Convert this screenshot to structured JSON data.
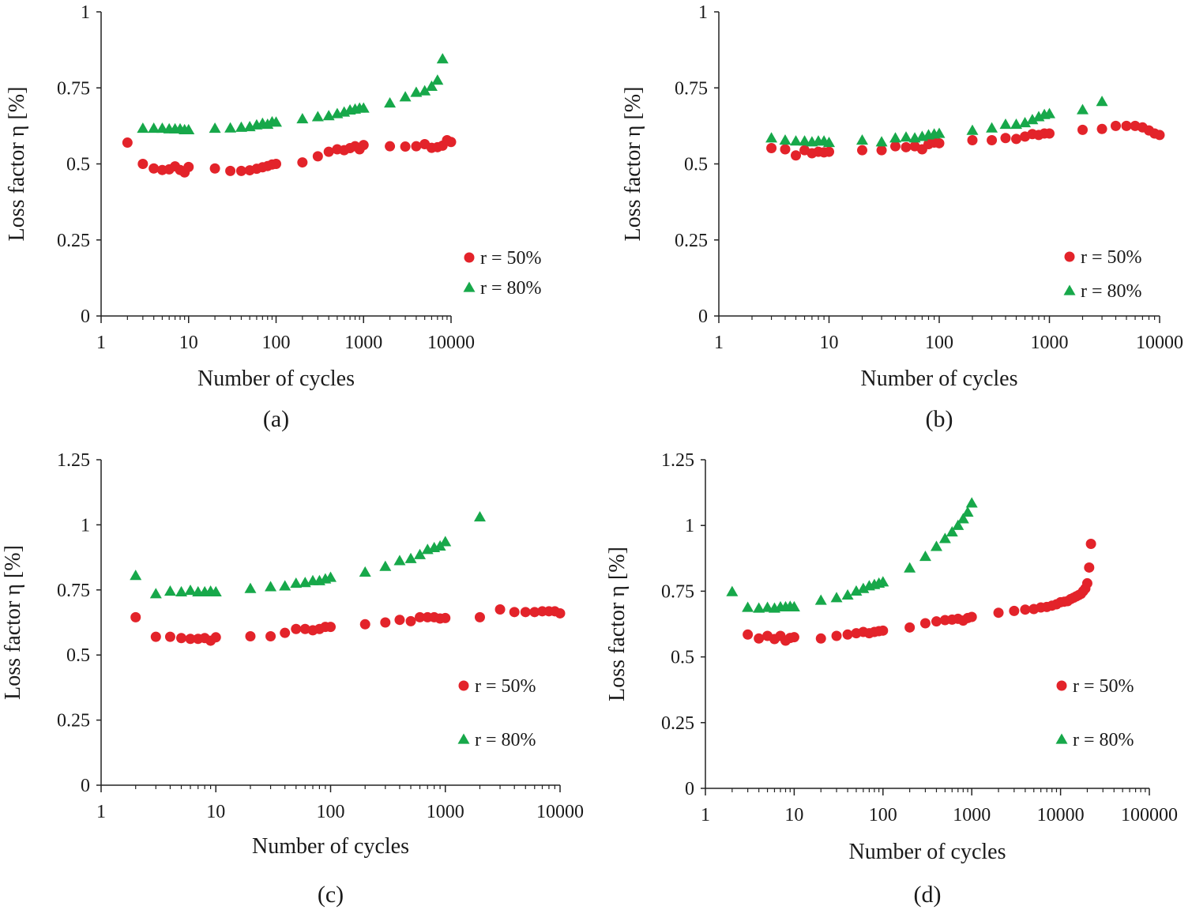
{
  "colors": {
    "series_50": "#e3232a",
    "series_80": "#17a84a",
    "axis": "#222222"
  },
  "chart_data": [
    {
      "type": "scatter",
      "panel": "(a)",
      "xscale": "log",
      "xlabel": "Number of cycles",
      "ylabel": "Loss factor η [%]",
      "xlim": [
        1,
        10000
      ],
      "ylim": [
        0,
        1
      ],
      "xticks": [
        1,
        10,
        100,
        1000,
        10000
      ],
      "xtick_labels": [
        "1",
        "10",
        "100",
        "1000",
        "10000"
      ],
      "yticks": [
        0,
        0.25,
        0.5,
        0.75,
        1
      ],
      "ytick_labels": [
        "0",
        "0.25",
        "0.5",
        "0.75",
        "1"
      ],
      "legend_position": "bottom-right",
      "series": [
        {
          "name": "r = 50%",
          "marker": "circle",
          "x": [
            2,
            3,
            4,
            5,
            6,
            7,
            8,
            9,
            10,
            20,
            30,
            40,
            50,
            60,
            70,
            80,
            90,
            100,
            200,
            300,
            400,
            500,
            600,
            700,
            800,
            900,
            1000,
            2000,
            3000,
            4000,
            5000,
            6000,
            7000,
            8000,
            9000,
            10000
          ],
          "y": [
            0.57,
            0.5,
            0.485,
            0.48,
            0.482,
            0.492,
            0.48,
            0.472,
            0.49,
            0.485,
            0.477,
            0.477,
            0.479,
            0.484,
            0.489,
            0.493,
            0.498,
            0.5,
            0.505,
            0.525,
            0.54,
            0.548,
            0.545,
            0.552,
            0.558,
            0.548,
            0.562,
            0.558,
            0.557,
            0.558,
            0.565,
            0.553,
            0.555,
            0.56,
            0.578,
            0.572
          ]
        },
        {
          "name": "r = 80%",
          "marker": "triangle",
          "x": [
            3,
            4,
            5,
            6,
            7,
            8,
            9,
            10,
            20,
            30,
            40,
            50,
            60,
            70,
            80,
            90,
            100,
            200,
            300,
            400,
            500,
            600,
            700,
            800,
            900,
            1000,
            2000,
            3000,
            4000,
            5000,
            6000,
            7000,
            8000
          ],
          "y": [
            0.617,
            0.617,
            0.617,
            0.615,
            0.615,
            0.615,
            0.612,
            0.612,
            0.617,
            0.618,
            0.62,
            0.622,
            0.628,
            0.633,
            0.63,
            0.638,
            0.637,
            0.648,
            0.655,
            0.658,
            0.665,
            0.67,
            0.677,
            0.68,
            0.683,
            0.683,
            0.7,
            0.72,
            0.735,
            0.74,
            0.755,
            0.775,
            0.845
          ]
        }
      ]
    },
    {
      "type": "scatter",
      "panel": "(b)",
      "xscale": "log",
      "xlabel": "Number of cycles",
      "ylabel": "Loss factor η [%]",
      "xlim": [
        1,
        10000
      ],
      "ylim": [
        0,
        1
      ],
      "xticks": [
        1,
        10,
        100,
        1000,
        10000
      ],
      "xtick_labels": [
        "1",
        "10",
        "100",
        "1000",
        "10000"
      ],
      "yticks": [
        0,
        0.25,
        0.5,
        0.75,
        1
      ],
      "ytick_labels": [
        "0",
        "0.25",
        "0.5",
        "0.75",
        "1"
      ],
      "legend_position": "bottom-right",
      "series": [
        {
          "name": "r = 50%",
          "marker": "circle",
          "x": [
            3,
            4,
            5,
            6,
            7,
            8,
            9,
            10,
            20,
            30,
            40,
            50,
            60,
            70,
            80,
            90,
            100,
            200,
            300,
            400,
            500,
            600,
            700,
            800,
            900,
            1000,
            2000,
            3000,
            4000,
            5000,
            6000,
            7000,
            8000,
            9000,
            10000
          ],
          "y": [
            0.552,
            0.548,
            0.528,
            0.545,
            0.535,
            0.54,
            0.538,
            0.54,
            0.545,
            0.545,
            0.558,
            0.555,
            0.558,
            0.548,
            0.565,
            0.57,
            0.568,
            0.578,
            0.578,
            0.585,
            0.582,
            0.59,
            0.598,
            0.595,
            0.6,
            0.6,
            0.612,
            0.615,
            0.625,
            0.625,
            0.625,
            0.62,
            0.61,
            0.6,
            0.595
          ]
        },
        {
          "name": "r = 80%",
          "marker": "triangle",
          "x": [
            3,
            4,
            5,
            6,
            7,
            8,
            9,
            10,
            20,
            30,
            40,
            50,
            60,
            70,
            80,
            90,
            100,
            200,
            300,
            400,
            500,
            600,
            700,
            800,
            900,
            1000,
            2000,
            3000
          ],
          "y": [
            0.585,
            0.578,
            0.575,
            0.575,
            0.572,
            0.575,
            0.575,
            0.57,
            0.578,
            0.572,
            0.585,
            0.588,
            0.585,
            0.59,
            0.595,
            0.598,
            0.6,
            0.61,
            0.618,
            0.63,
            0.63,
            0.635,
            0.645,
            0.655,
            0.662,
            0.665,
            0.678,
            0.705
          ]
        }
      ]
    },
    {
      "type": "scatter",
      "panel": "(c)",
      "xscale": "log",
      "xlabel": "Number of cycles",
      "ylabel": "Loss factor η [%]",
      "xlim": [
        1,
        10000
      ],
      "ylim": [
        0,
        1.25
      ],
      "xticks": [
        1,
        10,
        100,
        1000,
        10000
      ],
      "xtick_labels": [
        "1",
        "10",
        "100",
        "1000",
        "10000"
      ],
      "yticks": [
        0,
        0.25,
        0.5,
        0.75,
        1,
        1.25
      ],
      "ytick_labels": [
        "0",
        "0.25",
        "0.5",
        "0.75",
        "1",
        "1.25"
      ],
      "legend_position": "bottom-right",
      "series": [
        {
          "name": "r = 50%",
          "marker": "circle",
          "x": [
            2,
            3,
            4,
            5,
            6,
            7,
            8,
            9,
            10,
            20,
            30,
            40,
            50,
            60,
            70,
            80,
            90,
            100,
            200,
            300,
            400,
            500,
            600,
            700,
            800,
            900,
            1000,
            2000,
            3000,
            4000,
            5000,
            6000,
            7000,
            8000,
            9000,
            10000
          ],
          "y": [
            0.645,
            0.57,
            0.57,
            0.565,
            0.562,
            0.562,
            0.565,
            0.555,
            0.568,
            0.572,
            0.572,
            0.585,
            0.6,
            0.6,
            0.595,
            0.6,
            0.608,
            0.608,
            0.618,
            0.625,
            0.635,
            0.63,
            0.645,
            0.645,
            0.645,
            0.64,
            0.642,
            0.645,
            0.675,
            0.665,
            0.665,
            0.665,
            0.668,
            0.668,
            0.668,
            0.66
          ]
        },
        {
          "name": "r = 80%",
          "marker": "triangle",
          "x": [
            2,
            3,
            4,
            5,
            6,
            7,
            8,
            9,
            10,
            20,
            30,
            40,
            50,
            60,
            70,
            80,
            90,
            100,
            200,
            300,
            400,
            500,
            600,
            700,
            800,
            900,
            1000,
            2000
          ],
          "y": [
            0.805,
            0.735,
            0.745,
            0.742,
            0.748,
            0.742,
            0.742,
            0.745,
            0.742,
            0.755,
            0.762,
            0.765,
            0.775,
            0.778,
            0.785,
            0.785,
            0.792,
            0.798,
            0.818,
            0.84,
            0.862,
            0.87,
            0.885,
            0.905,
            0.912,
            0.918,
            0.935,
            1.03
          ]
        }
      ]
    },
    {
      "type": "scatter",
      "panel": "(d)",
      "xscale": "log",
      "xlabel": "Number of cycles",
      "ylabel": "Loss factor η [%]",
      "xlim": [
        1,
        100000
      ],
      "ylim": [
        0,
        1.25
      ],
      "xticks": [
        1,
        10,
        100,
        1000,
        10000,
        100000
      ],
      "xtick_labels": [
        "1",
        "10",
        "100",
        "1000",
        "10000",
        "100000"
      ],
      "yticks": [
        0,
        0.25,
        0.5,
        0.75,
        1,
        1.25
      ],
      "ytick_labels": [
        "0",
        "0.25",
        "0.5",
        "0.75",
        "1",
        "1.25"
      ],
      "legend_position": "bottom-right",
      "series": [
        {
          "name": "r = 50%",
          "marker": "circle",
          "x": [
            3,
            4,
            5,
            6,
            7,
            8,
            9,
            10,
            20,
            30,
            40,
            50,
            60,
            70,
            80,
            90,
            100,
            200,
            300,
            400,
            500,
            600,
            700,
            800,
            900,
            1000,
            2000,
            3000,
            4000,
            5000,
            6000,
            7000,
            8000,
            9000,
            10000,
            11000,
            12000,
            13000,
            14000,
            15000,
            16000,
            17000,
            18000,
            19000,
            20000,
            21000,
            22000
          ],
          "y": [
            0.585,
            0.57,
            0.58,
            0.568,
            0.58,
            0.562,
            0.572,
            0.575,
            0.57,
            0.58,
            0.585,
            0.59,
            0.595,
            0.59,
            0.595,
            0.598,
            0.6,
            0.612,
            0.628,
            0.635,
            0.64,
            0.642,
            0.645,
            0.638,
            0.648,
            0.652,
            0.668,
            0.675,
            0.68,
            0.682,
            0.688,
            0.69,
            0.695,
            0.7,
            0.708,
            0.71,
            0.712,
            0.72,
            0.725,
            0.73,
            0.735,
            0.74,
            0.75,
            0.76,
            0.78,
            0.84,
            0.93
          ]
        },
        {
          "name": "r = 80%",
          "marker": "triangle",
          "x": [
            2,
            3,
            4,
            5,
            6,
            7,
            8,
            9,
            10,
            20,
            30,
            40,
            50,
            60,
            70,
            80,
            90,
            100,
            200,
            300,
            400,
            500,
            600,
            700,
            800,
            900,
            1000
          ],
          "y": [
            0.748,
            0.688,
            0.685,
            0.688,
            0.685,
            0.69,
            0.69,
            0.692,
            0.69,
            0.715,
            0.725,
            0.735,
            0.75,
            0.76,
            0.77,
            0.775,
            0.78,
            0.785,
            0.838,
            0.882,
            0.92,
            0.95,
            0.975,
            1.0,
            1.025,
            1.05,
            1.085
          ]
        }
      ]
    }
  ]
}
